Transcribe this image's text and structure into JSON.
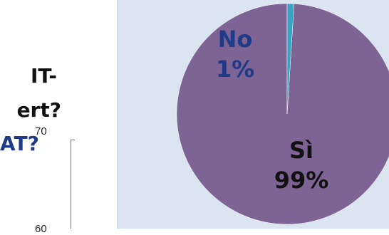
{
  "left_text": {
    "line1": "IT-",
    "line2": "ert?",
    "line3": "AT?"
  },
  "axis_ticks": {
    "top": "70",
    "bottom": "60"
  },
  "colors": {
    "panel_background": "#dbe5f1",
    "si_slice": "#7e6494",
    "no_slice": "#3aa3c4"
  },
  "chart_data": {
    "type": "pie",
    "categories": [
      "Sì",
      "No"
    ],
    "values": [
      99,
      1
    ],
    "data_labels": [
      {
        "category": "Sì",
        "percent": "99%"
      },
      {
        "category": "No",
        "percent": "1%"
      }
    ],
    "legend": "none"
  }
}
